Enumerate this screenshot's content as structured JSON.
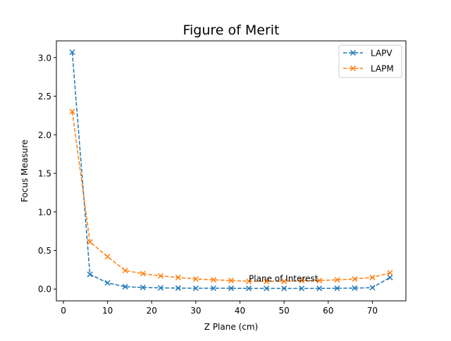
{
  "chart_data": {
    "type": "line",
    "title": "Figure of Merit",
    "xlabel": "Z Plane (cm)",
    "ylabel": "Focus Measure",
    "xlim": [
      -1.6,
      77.6
    ],
    "ylim": [
      -0.153,
      3.217
    ],
    "xticks": [
      0,
      10,
      20,
      30,
      40,
      50,
      60,
      70
    ],
    "xtick_labels": [
      "0",
      "10",
      "20",
      "30",
      "40",
      "50",
      "60",
      "70"
    ],
    "yticks": [
      0.0,
      0.5,
      1.0,
      1.5,
      2.0,
      2.5,
      3.0
    ],
    "ytick_labels": [
      "0.0",
      "0.5",
      "1.0",
      "1.5",
      "2.0",
      "2.5",
      "3.0"
    ],
    "grid": false,
    "legend_position": "top-right",
    "x": [
      2,
      6,
      10,
      14,
      18,
      22,
      26,
      30,
      34,
      38,
      42,
      46,
      50,
      54,
      58,
      62,
      66,
      70,
      74
    ],
    "series": [
      {
        "name": "LAPV",
        "color": "#1f77b4",
        "linestyle": "dashed",
        "marker": "x",
        "values": [
          3.07,
          0.19,
          0.08,
          0.03,
          0.02,
          0.015,
          0.012,
          0.01,
          0.01,
          0.01,
          0.008,
          0.008,
          0.008,
          0.008,
          0.008,
          0.01,
          0.012,
          0.018,
          0.15
        ]
      },
      {
        "name": "LAPM",
        "color": "#ff7f0e",
        "linestyle": "dashed",
        "marker": "x",
        "values": [
          2.3,
          0.61,
          0.42,
          0.24,
          0.2,
          0.17,
          0.15,
          0.13,
          0.12,
          0.11,
          0.1,
          0.1,
          0.1,
          0.11,
          0.11,
          0.12,
          0.13,
          0.15,
          0.21
        ]
      }
    ],
    "annotations": [
      {
        "text": "Plane of Interest",
        "x": 42,
        "y": 0.1
      }
    ]
  }
}
